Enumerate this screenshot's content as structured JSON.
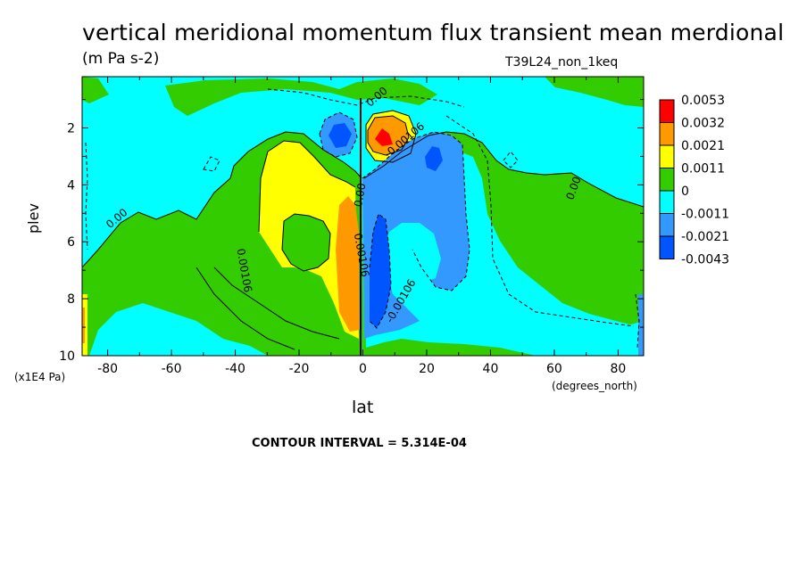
{
  "title": "vertical meridional momentum flux transient mean merdional",
  "units": "(m Pa s-2)",
  "run_id": "T39L24_non_1keq",
  "ylabel": "plev",
  "yunits": "(x1E4 Pa)",
  "xlabel": "lat",
  "xunits": "(degrees_north)",
  "contour_interval": "CONTOUR INTERVAL = 5.314E-04",
  "colors": {
    "red": "#ff0000",
    "orange": "#ff9900",
    "yellow": "#ffff00",
    "green": "#33cc00",
    "cyan": "#00ffff",
    "lightblue": "#3399ff",
    "blue": "#0055ff"
  },
  "chart_data": {
    "type": "heatmap",
    "title": "vertical meridional momentum flux transient mean merdional",
    "units": "(m Pa s-2)",
    "xlabel": "lat",
    "ylabel": "plev",
    "xlim": [
      -88,
      88
    ],
    "ylim": [
      0.2,
      10
    ],
    "y_inverted": true,
    "x_ticks": [
      "-80",
      "-60",
      "-40",
      "-20",
      "0",
      "20",
      "40",
      "60",
      "80"
    ],
    "x_tick_values": [
      -80,
      -60,
      -40,
      -20,
      0,
      20,
      40,
      60,
      80
    ],
    "y_ticks": [
      "2",
      "4",
      "6",
      "8",
      "10"
    ],
    "y_tick_values": [
      2,
      4,
      6,
      8,
      10
    ],
    "colorbar_levels": [
      "0.0053",
      "0.0032",
      "0.0021",
      "0.0011",
      "0",
      "-0.0011",
      "-0.0021",
      "-0.0043"
    ],
    "colorbar_colors": [
      "#ff0000",
      "#ff9900",
      "#ffff00",
      "#33cc00",
      "#00ffff",
      "#3399ff",
      "#0055ff"
    ],
    "contour_labels": [
      "0.00",
      "0.00",
      "0.00",
      "0.00",
      "0.00106",
      "-0.00106",
      "0.00106",
      "-0.00106"
    ],
    "contour_interval": 0.0005314
  }
}
